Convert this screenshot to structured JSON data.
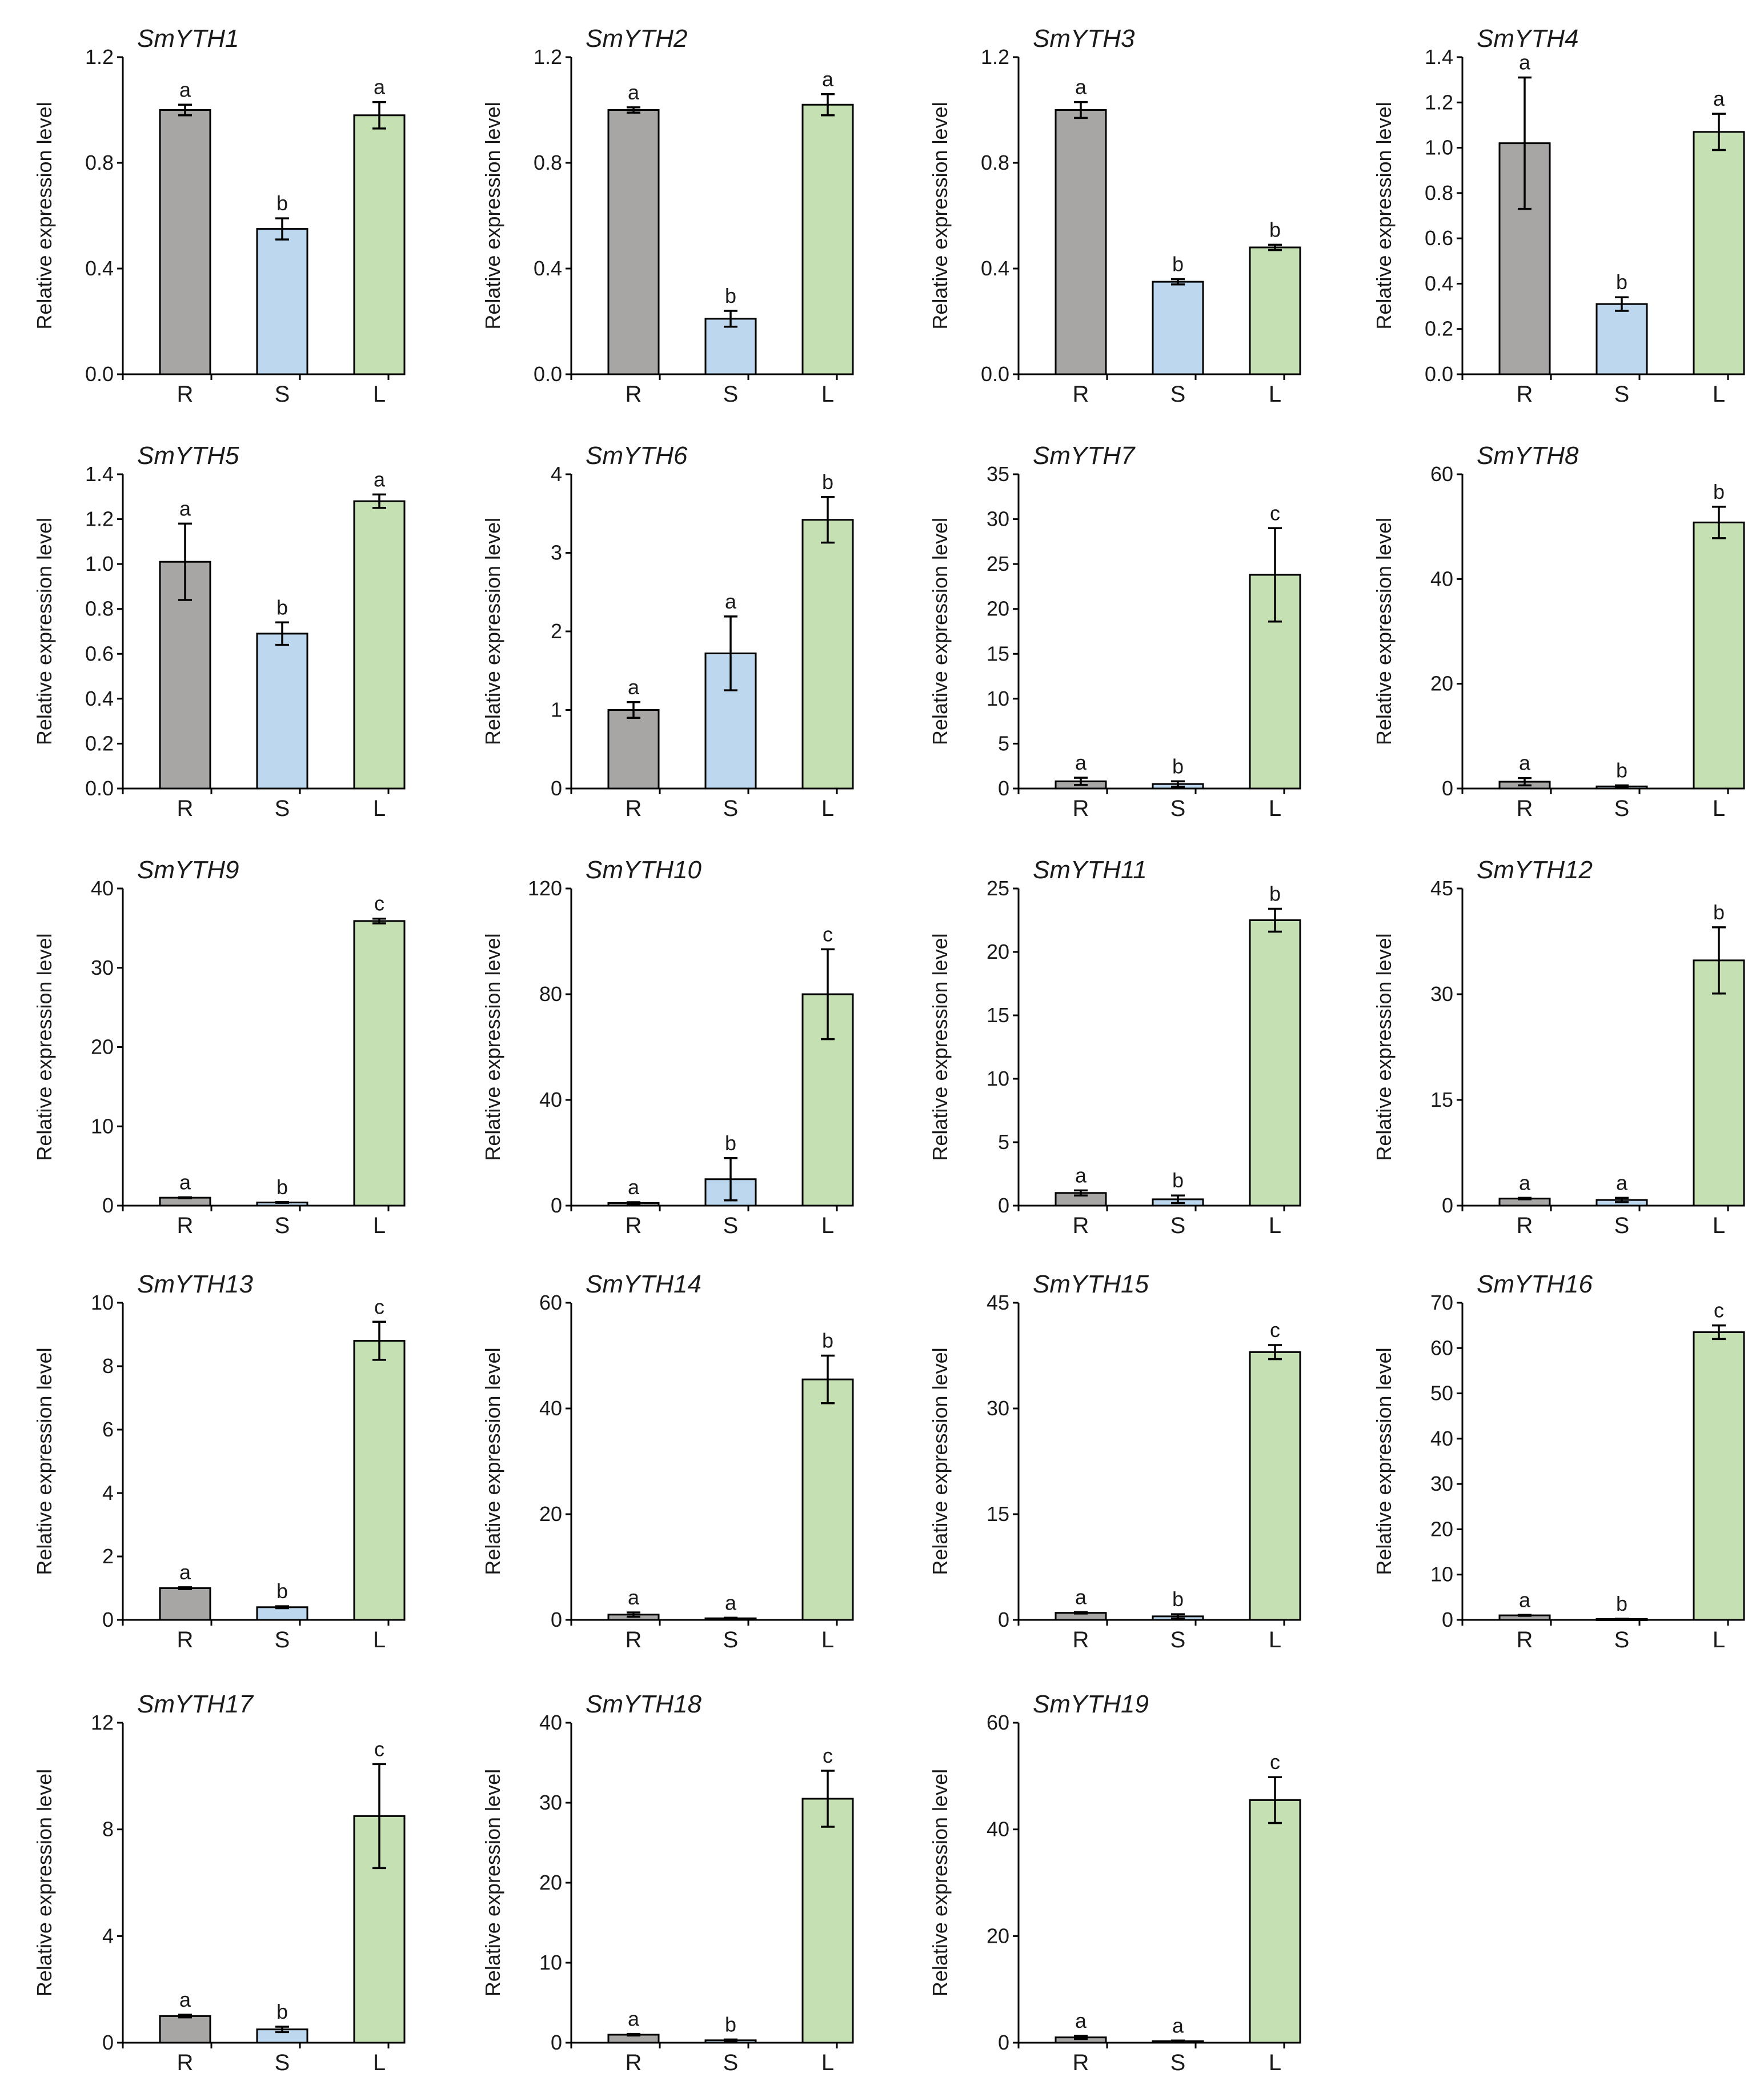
{
  "figure": {
    "ylabel": "Relative expression level",
    "bar_colors": {
      "R": "#a8a5a5",
      "S": "#bdd7ee",
      "L": "#c5e0b3"
    }
  },
  "chart_data": [
    {
      "type": "bar",
      "title": "SmYTH1",
      "ylabel": "Relative expression level",
      "categories": [
        "R",
        "S",
        "L"
      ],
      "values": [
        1.0,
        0.55,
        0.98
      ],
      "errors": [
        0.02,
        0.04,
        0.05
      ],
      "significance": [
        "a",
        "b",
        "a"
      ],
      "ylim": [
        0,
        1.2
      ],
      "yticks": [
        "0.0",
        "0.4",
        "0.8",
        "1.2"
      ]
    },
    {
      "type": "bar",
      "title": "SmYTH2",
      "ylabel": "Relative expression level",
      "categories": [
        "R",
        "S",
        "L"
      ],
      "values": [
        1.0,
        0.21,
        1.02
      ],
      "errors": [
        0.01,
        0.03,
        0.04
      ],
      "significance": [
        "a",
        "b",
        "a"
      ],
      "ylim": [
        0,
        1.2
      ],
      "yticks": [
        "0.0",
        "0.4",
        "0.8",
        "1.2"
      ]
    },
    {
      "type": "bar",
      "title": "SmYTH3",
      "ylabel": "Relative expression level",
      "categories": [
        "R",
        "S",
        "L"
      ],
      "values": [
        1.0,
        0.35,
        0.48
      ],
      "errors": [
        0.03,
        0.01,
        0.01
      ],
      "significance": [
        "a",
        "b",
        "b"
      ],
      "ylim": [
        0,
        1.2
      ],
      "yticks": [
        "0.0",
        "0.4",
        "0.8",
        "1.2"
      ]
    },
    {
      "type": "bar",
      "title": "SmYTH4",
      "ylabel": "Relative expression level",
      "categories": [
        "R",
        "S",
        "L"
      ],
      "values": [
        1.02,
        0.31,
        1.07
      ],
      "errors": [
        0.29,
        0.03,
        0.08
      ],
      "significance": [
        "a",
        "b",
        "a"
      ],
      "ylim": [
        0,
        1.4
      ],
      "yticks": [
        "0.0",
        "0.2",
        "0.4",
        "0.6",
        "0.8",
        "1.0",
        "1.2",
        "1.4"
      ]
    },
    {
      "type": "bar",
      "title": "SmYTH5",
      "ylabel": "Relative expression level",
      "categories": [
        "R",
        "S",
        "L"
      ],
      "values": [
        1.01,
        0.69,
        1.28
      ],
      "errors": [
        0.17,
        0.05,
        0.03
      ],
      "significance": [
        "a",
        "b",
        "a"
      ],
      "ylim": [
        0,
        1.4
      ],
      "yticks": [
        "0.0",
        "0.2",
        "0.4",
        "0.6",
        "0.8",
        "1.0",
        "1.2",
        "1.4"
      ]
    },
    {
      "type": "bar",
      "title": "SmYTH6",
      "ylabel": "Relative expression level",
      "categories": [
        "R",
        "S",
        "L"
      ],
      "values": [
        1.0,
        1.72,
        3.42
      ],
      "errors": [
        0.1,
        0.47,
        0.29
      ],
      "significance": [
        "a",
        "a",
        "b"
      ],
      "ylim": [
        0,
        4
      ],
      "yticks": [
        "0",
        "1",
        "2",
        "3",
        "4"
      ]
    },
    {
      "type": "bar",
      "title": "SmYTH7",
      "ylabel": "Relative expression level",
      "categories": [
        "R",
        "S",
        "L"
      ],
      "values": [
        0.8,
        0.5,
        23.8
      ],
      "errors": [
        0.4,
        0.3,
        5.2
      ],
      "significance": [
        "a",
        "b",
        "c"
      ],
      "ylim": [
        0,
        35
      ],
      "yticks": [
        "0",
        "5",
        "10",
        "15",
        "20",
        "25",
        "30",
        "35"
      ]
    },
    {
      "type": "bar",
      "title": "SmYTH8",
      "ylabel": "Relative expression level",
      "categories": [
        "R",
        "S",
        "L"
      ],
      "values": [
        1.3,
        0.4,
        50.8
      ],
      "errors": [
        0.7,
        0.2,
        3.0
      ],
      "significance": [
        "a",
        "b",
        "b"
      ],
      "ylim": [
        0,
        60
      ],
      "yticks": [
        "0",
        "20",
        "40",
        "60"
      ]
    },
    {
      "type": "bar",
      "title": "SmYTH9",
      "ylabel": "Relative expression level",
      "categories": [
        "R",
        "S",
        "L"
      ],
      "values": [
        1.0,
        0.4,
        35.9
      ],
      "errors": [
        0.05,
        0.05,
        0.3
      ],
      "significance": [
        "a",
        "b",
        "c"
      ],
      "ylim": [
        0,
        40
      ],
      "yticks": [
        "0",
        "10",
        "20",
        "30",
        "40"
      ]
    },
    {
      "type": "bar",
      "title": "SmYTH10",
      "ylabel": "Relative expression level",
      "categories": [
        "R",
        "S",
        "L"
      ],
      "values": [
        1.0,
        10.0,
        80.0
      ],
      "errors": [
        0.3,
        8.0,
        17.0
      ],
      "significance": [
        "a",
        "b",
        "c"
      ],
      "ylim": [
        0,
        120
      ],
      "yticks": [
        "0",
        "40",
        "80",
        "120"
      ]
    },
    {
      "type": "bar",
      "title": "SmYTH11",
      "ylabel": "Relative expression level",
      "categories": [
        "R",
        "S",
        "L"
      ],
      "values": [
        1.0,
        0.5,
        22.5
      ],
      "errors": [
        0.2,
        0.3,
        0.9
      ],
      "significance": [
        "a",
        "b",
        "b"
      ],
      "ylim": [
        0,
        25
      ],
      "yticks": [
        "0",
        "5",
        "10",
        "15",
        "20",
        "25"
      ]
    },
    {
      "type": "bar",
      "title": "SmYTH12",
      "ylabel": "Relative expression level",
      "categories": [
        "R",
        "S",
        "L"
      ],
      "values": [
        1.0,
        0.8,
        34.8
      ],
      "errors": [
        0.1,
        0.3,
        4.7
      ],
      "significance": [
        "a",
        "a",
        "b"
      ],
      "ylim": [
        0,
        45
      ],
      "yticks": [
        "0",
        "15",
        "30",
        "45"
      ]
    },
    {
      "type": "bar",
      "title": "SmYTH13",
      "ylabel": "Relative expression level",
      "categories": [
        "R",
        "S",
        "L"
      ],
      "values": [
        1.0,
        0.4,
        8.8
      ],
      "errors": [
        0.03,
        0.03,
        0.6
      ],
      "significance": [
        "a",
        "b",
        "c"
      ],
      "ylim": [
        0,
        10
      ],
      "yticks": [
        "0",
        "2",
        "4",
        "6",
        "8",
        "10"
      ]
    },
    {
      "type": "bar",
      "title": "SmYTH14",
      "ylabel": "Relative expression level",
      "categories": [
        "R",
        "S",
        "L"
      ],
      "values": [
        1.0,
        0.3,
        45.5
      ],
      "errors": [
        0.4,
        0.1,
        4.5
      ],
      "significance": [
        "a",
        "a",
        "b"
      ],
      "ylim": [
        0,
        60
      ],
      "yticks": [
        "0",
        "20",
        "40",
        "60"
      ]
    },
    {
      "type": "bar",
      "title": "SmYTH15",
      "ylabel": "Relative expression level",
      "categories": [
        "R",
        "S",
        "L"
      ],
      "values": [
        1.0,
        0.5,
        38.0
      ],
      "errors": [
        0.1,
        0.3,
        1.0
      ],
      "significance": [
        "a",
        "b",
        "c"
      ],
      "ylim": [
        0,
        45
      ],
      "yticks": [
        "0",
        "15",
        "30",
        "45"
      ]
    },
    {
      "type": "bar",
      "title": "SmYTH16",
      "ylabel": "Relative expression level",
      "categories": [
        "R",
        "S",
        "L"
      ],
      "values": [
        1.0,
        0.2,
        63.5
      ],
      "errors": [
        0.1,
        0.05,
        1.5
      ],
      "significance": [
        "a",
        "b",
        "c"
      ],
      "ylim": [
        0,
        70
      ],
      "yticks": [
        "0",
        "10",
        "20",
        "30",
        "40",
        "50",
        "60",
        "70"
      ]
    },
    {
      "type": "bar",
      "title": "SmYTH17",
      "ylabel": "Relative expression level",
      "categories": [
        "R",
        "S",
        "L"
      ],
      "values": [
        1.0,
        0.5,
        8.5
      ],
      "errors": [
        0.05,
        0.1,
        1.95
      ],
      "significance": [
        "a",
        "b",
        "c"
      ],
      "ylim": [
        0,
        12
      ],
      "yticks": [
        "0",
        "4",
        "8",
        "12"
      ]
    },
    {
      "type": "bar",
      "title": "SmYTH18",
      "ylabel": "Relative expression level",
      "categories": [
        "R",
        "S",
        "L"
      ],
      "values": [
        1.0,
        0.3,
        30.5
      ],
      "errors": [
        0.1,
        0.1,
        3.5
      ],
      "significance": [
        "a",
        "b",
        "c"
      ],
      "ylim": [
        0,
        40
      ],
      "yticks": [
        "0",
        "10",
        "20",
        "30",
        "40"
      ]
    },
    {
      "type": "bar",
      "title": "SmYTH19",
      "ylabel": "Relative expression level",
      "categories": [
        "R",
        "S",
        "L"
      ],
      "values": [
        1.0,
        0.3,
        45.5
      ],
      "errors": [
        0.3,
        0.1,
        4.3
      ],
      "significance": [
        "a",
        "a",
        "c"
      ],
      "ylim": [
        0,
        60
      ],
      "yticks": [
        "0",
        "20",
        "40",
        "60"
      ]
    }
  ]
}
